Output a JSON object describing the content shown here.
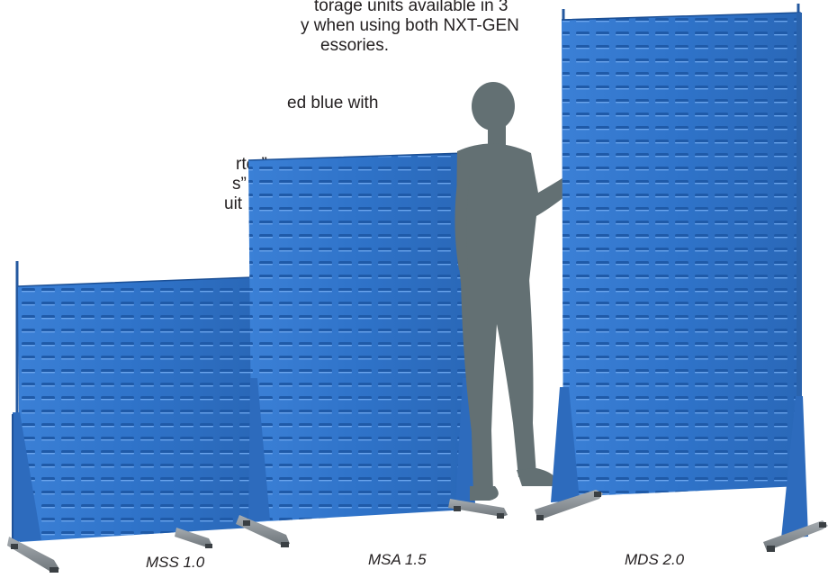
{
  "intro": {
    "line1": "torage units available in 3",
    "line2": "y when using both NXT-GEN",
    "line3": "essories.",
    "line4": "ed blue with",
    "line5": "rter”",
    "line6": "s”",
    "line7": "uit"
  },
  "captions": {
    "mss": "MSS 1.0",
    "msa": "MSA 1.5",
    "mds": "MDS 2.0"
  },
  "colors": {
    "panel_blue": "#2f73c9",
    "panel_light": "#4a8fe0",
    "panel_dark": "#1d57a6",
    "silhouette": "#637073",
    "foot_grey": "#8a9196",
    "text": "#231f20"
  }
}
